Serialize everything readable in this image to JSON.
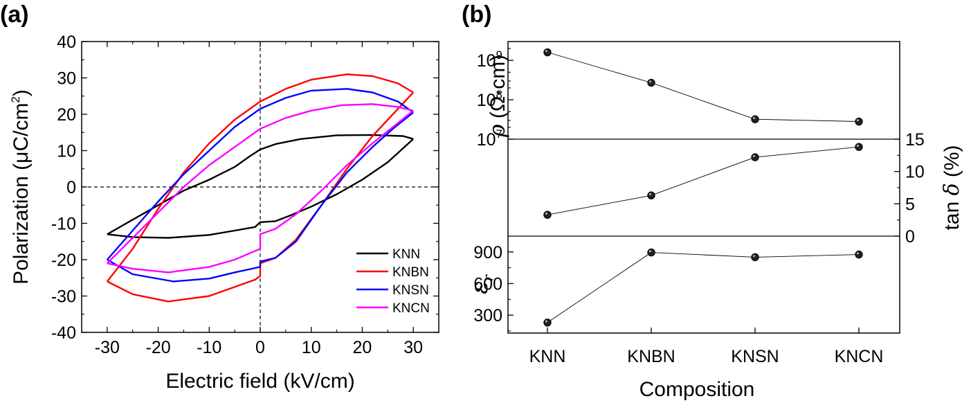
{
  "chart_data": [
    {
      "panel_label": "(a)",
      "type": "line",
      "title": "",
      "xlabel": "Electric field (kV/cm)",
      "ylabel_main": "Polarization (μC/cm",
      "ylabel_sup": "2",
      "ylabel_tail": ")",
      "xlim": [
        -35,
        35
      ],
      "ylim": [
        -40,
        40
      ],
      "xticks": [
        "-30",
        "-20",
        "-10",
        "0",
        "10",
        "20",
        "30"
      ],
      "yticks": [
        "-40",
        "-30",
        "-20",
        "-10",
        "0",
        "10",
        "20",
        "30",
        "40"
      ],
      "reference_lines": "dashed lines at x = 0 and y = 0",
      "legend_position": "bottom-right",
      "series": [
        {
          "name": "KNN",
          "color": "#000000",
          "upper_branch": [
            [
              -30,
              -13
            ],
            [
              -25,
              -9
            ],
            [
              -20,
              -5
            ],
            [
              -15,
              -1
            ],
            [
              -10,
              2
            ],
            [
              -5,
              5.5
            ],
            [
              -2,
              8.5
            ],
            [
              0,
              10.3
            ],
            [
              3,
              11.8
            ],
            [
              8,
              13.2
            ],
            [
              15,
              14.2
            ],
            [
              22,
              14.3
            ],
            [
              28,
              14
            ],
            [
              30,
              13.2
            ]
          ],
          "lower_branch": [
            [
              -30,
              -13
            ],
            [
              -25,
              -13.8
            ],
            [
              -18,
              -14
            ],
            [
              -10,
              -13.2
            ],
            [
              -5,
              -12
            ],
            [
              -1,
              -11
            ],
            [
              0,
              -9.7
            ],
            [
              3,
              -9.4
            ],
            [
              6,
              -7.8
            ],
            [
              10,
              -5.4
            ],
            [
              15,
              -2
            ],
            [
              20,
              2
            ],
            [
              25,
              6.8
            ],
            [
              30,
              13.2
            ]
          ]
        },
        {
          "name": "KNBN",
          "color": "#ff0000",
          "upper_branch": [
            [
              -30,
              -26
            ],
            [
              -25,
              -17
            ],
            [
              -20,
              -6
            ],
            [
              -15,
              4
            ],
            [
              -10,
              12
            ],
            [
              -5,
              18.5
            ],
            [
              0,
              23.5
            ],
            [
              5,
              27
            ],
            [
              10,
              29.5
            ],
            [
              17,
              31
            ],
            [
              22,
              30.5
            ],
            [
              27,
              28.5
            ],
            [
              30,
              26
            ]
          ],
          "lower_branch": [
            [
              -30,
              -26
            ],
            [
              -25,
              -29.5
            ],
            [
              -18,
              -31.5
            ],
            [
              -10,
              -30
            ],
            [
              -5,
              -27.5
            ],
            [
              -1,
              -25.5
            ],
            [
              0,
              -24.5
            ],
            [
              0,
              -21
            ],
            [
              3,
              -19.5
            ],
            [
              7,
              -14.5
            ],
            [
              12,
              -5
            ],
            [
              17,
              5
            ],
            [
              22,
              14
            ],
            [
              26,
              20
            ],
            [
              30,
              26
            ]
          ]
        },
        {
          "name": "KNSN",
          "color": "#0000ff",
          "upper_branch": [
            [
              -30,
              -20
            ],
            [
              -25,
              -12
            ],
            [
              -20,
              -4
            ],
            [
              -15,
              3.5
            ],
            [
              -10,
              10
            ],
            [
              -5,
              16.5
            ],
            [
              0,
              21.5
            ],
            [
              5,
              24.5
            ],
            [
              10,
              26.5
            ],
            [
              17,
              27
            ],
            [
              22,
              26
            ],
            [
              27,
              23.5
            ],
            [
              30,
              20.5
            ]
          ],
          "lower_branch": [
            [
              -30,
              -20
            ],
            [
              -25,
              -24
            ],
            [
              -17,
              -26
            ],
            [
              -10,
              -25.2
            ],
            [
              -5,
              -23.5
            ],
            [
              0,
              -22
            ],
            [
              0,
              -20.5
            ],
            [
              3,
              -19.5
            ],
            [
              7,
              -15
            ],
            [
              12,
              -5
            ],
            [
              17,
              4
            ],
            [
              22,
              11
            ],
            [
              26,
              16
            ],
            [
              30,
              20.5
            ]
          ]
        },
        {
          "name": "KNCN",
          "color": "#ff00ff",
          "upper_branch": [
            [
              -30,
              -21
            ],
            [
              -25,
              -14
            ],
            [
              -20,
              -7
            ],
            [
              -15,
              0
            ],
            [
              -10,
              6
            ],
            [
              -5,
              11
            ],
            [
              0,
              16
            ],
            [
              5,
              19
            ],
            [
              10,
              21
            ],
            [
              16,
              22.5
            ],
            [
              22,
              22.8
            ],
            [
              27,
              22
            ],
            [
              30,
              21
            ]
          ],
          "lower_branch": [
            [
              -30,
              -21
            ],
            [
              -25,
              -22.5
            ],
            [
              -18,
              -23.5
            ],
            [
              -10,
              -22
            ],
            [
              -5,
              -20
            ],
            [
              0,
              -17
            ],
            [
              0,
              -13
            ],
            [
              3,
              -11.5
            ],
            [
              7,
              -7.5
            ],
            [
              12,
              -1
            ],
            [
              17,
              6
            ],
            [
              22,
              12
            ],
            [
              26,
              16.5
            ],
            [
              30,
              21
            ]
          ]
        }
      ]
    },
    {
      "panel_label": "(b)",
      "type": "scatter",
      "title": "",
      "xlabel": "Composition",
      "categories": [
        "KNN",
        "KNBN",
        "KNSN",
        "KNCN"
      ],
      "subplots": [
        {
          "quantity": "resistivity",
          "ylabel": "ρ (Ω·cm)",
          "scale": "log",
          "axis_side": "left",
          "ylim": [
            10000000,
            3000000000
          ],
          "yticks": [
            {
              "base": "10",
              "exp": "9",
              "value": 1000000000
            },
            {
              "base": "10",
              "exp": "8",
              "value": 100000000
            },
            {
              "base": "10",
              "exp": "7",
              "value": 10000000
            }
          ],
          "values": [
            1600000000,
            270000000,
            32000000,
            28000000
          ]
        },
        {
          "quantity": "dielectric loss",
          "ylabel_main": "tan ",
          "ylabel_symbol": "δ",
          "ylabel_tail": " (%)",
          "scale": "linear",
          "axis_side": "right",
          "ylim": [
            0,
            15
          ],
          "yticks": [
            "0",
            "5",
            "10",
            "15"
          ],
          "values": [
            3.3,
            6.3,
            12.2,
            13.8
          ]
        },
        {
          "quantity": "permittivity",
          "ylabel_symbol": "ε",
          "ylabel_sub": "r",
          "scale": "linear",
          "axis_side": "left",
          "ylim": [
            130,
            1050
          ],
          "yticks": [
            "300",
            "600",
            "900"
          ],
          "values": [
            230,
            895,
            850,
            875
          ]
        }
      ]
    }
  ]
}
